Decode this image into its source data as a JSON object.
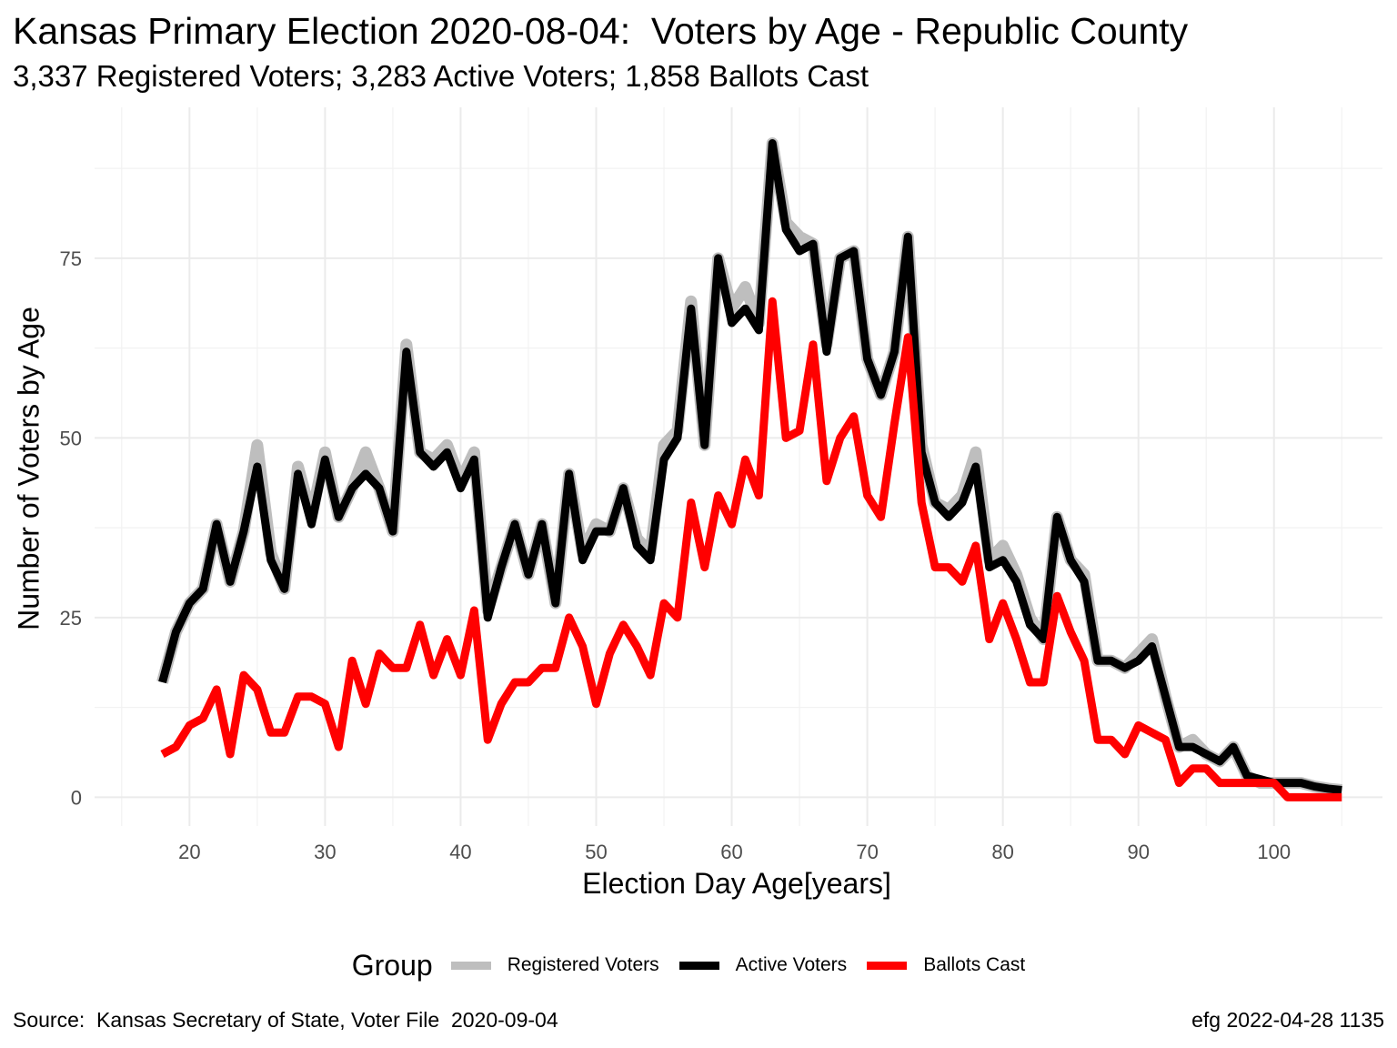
{
  "title": "Kansas Primary Election 2020-08-04:  Voters by Age - Republic County",
  "subtitle": "3,337 Registered Voters; 3,283 Active Voters; 1,858 Ballots Cast",
  "caption_left": "Source:  Kansas Secretary of State, Voter File  2020-09-04",
  "caption_right": "efg 2022-04-28 1135",
  "legend": {
    "title": "Group",
    "items": [
      {
        "label": "Registered Voters",
        "color": "#bebebe"
      },
      {
        "label": "Active Voters",
        "color": "#000000"
      },
      {
        "label": "Ballots Cast",
        "color": "#ff0000"
      }
    ]
  },
  "chart_data": {
    "type": "line",
    "xlabel": "Election Day Age[years]",
    "ylabel": "Number of Voters by Age",
    "xlim": [
      13,
      108
    ],
    "ylim": [
      -4,
      96
    ],
    "xticks": [
      20,
      30,
      40,
      50,
      60,
      70,
      80,
      90,
      100
    ],
    "yticks": [
      0,
      25,
      50,
      75
    ],
    "grid": true,
    "legend_position": "bottom",
    "x": [
      18,
      19,
      20,
      21,
      22,
      23,
      24,
      25,
      26,
      27,
      28,
      29,
      30,
      31,
      32,
      33,
      34,
      35,
      36,
      37,
      38,
      39,
      40,
      41,
      42,
      43,
      44,
      45,
      46,
      47,
      48,
      49,
      50,
      51,
      52,
      53,
      54,
      55,
      56,
      57,
      58,
      59,
      60,
      61,
      62,
      63,
      64,
      65,
      66,
      67,
      68,
      69,
      70,
      71,
      72,
      73,
      74,
      75,
      76,
      77,
      78,
      79,
      80,
      81,
      82,
      83,
      84,
      85,
      86,
      87,
      88,
      89,
      90,
      91,
      92,
      93,
      94,
      95,
      96,
      97,
      98,
      99,
      100,
      101,
      102,
      103,
      104,
      105
    ],
    "series": [
      {
        "name": "Registered Voters",
        "color": "#bebebe",
        "values": [
          16,
          23,
          27,
          29,
          38,
          30,
          37,
          49,
          34,
          29,
          46,
          39,
          48,
          39,
          43,
          48,
          43,
          37,
          63,
          48,
          47,
          49,
          44,
          48,
          26,
          32,
          38,
          31,
          38,
          27,
          45,
          34,
          38,
          37,
          43,
          36,
          34,
          49,
          51,
          69,
          49,
          75,
          68,
          71,
          66,
          91,
          80,
          78,
          77,
          63,
          75,
          76,
          61,
          56,
          62,
          78,
          49,
          41,
          40,
          42,
          48,
          33,
          35,
          31,
          25,
          22,
          39,
          33,
          31,
          19,
          19,
          18,
          20,
          22,
          14,
          7,
          8,
          6,
          5,
          7,
          3,
          2,
          2,
          2,
          2,
          1.5,
          1.2,
          1
        ],
        "stroke_width": 13
      },
      {
        "name": "Active Voters",
        "color": "#000000",
        "values": [
          16,
          23,
          27,
          29,
          38,
          30,
          37,
          46,
          33,
          29,
          45,
          38,
          47,
          39,
          43,
          45,
          43,
          37,
          62,
          48,
          46,
          48,
          43,
          47,
          25,
          32,
          38,
          31,
          38,
          27,
          45,
          33,
          37,
          37,
          43,
          35,
          33,
          47,
          50,
          68,
          49,
          75,
          66,
          68,
          65,
          91,
          79,
          76,
          77,
          62,
          75,
          76,
          61,
          56,
          62,
          78,
          48,
          41,
          39,
          41,
          46,
          32,
          33,
          30,
          24,
          22,
          39,
          33,
          30,
          19,
          19,
          18,
          19,
          21,
          14,
          7,
          7,
          6,
          5,
          7,
          3,
          2.5,
          2,
          2,
          2,
          1.5,
          1.2,
          1
        ],
        "stroke_width": 9
      },
      {
        "name": "Ballots Cast",
        "color": "#ff0000",
        "values": [
          6,
          7,
          10,
          11,
          15,
          6,
          17,
          15,
          9,
          9,
          14,
          14,
          13,
          7,
          19,
          13,
          20,
          18,
          18,
          24,
          17,
          22,
          17,
          26,
          8,
          13,
          16,
          16,
          18,
          18,
          25,
          21,
          13,
          20,
          24,
          21,
          17,
          27,
          25,
          41,
          32,
          42,
          38,
          47,
          42,
          69,
          50,
          51,
          63,
          44,
          50,
          53,
          42,
          39,
          52,
          64,
          41,
          32,
          32,
          30,
          35,
          22,
          27,
          22,
          16,
          16,
          28,
          23,
          19,
          8,
          8,
          6,
          10,
          9,
          8,
          2,
          4,
          4,
          2,
          2,
          2,
          2,
          2,
          0,
          0,
          0,
          0,
          0
        ],
        "stroke_width": 9
      }
    ]
  }
}
